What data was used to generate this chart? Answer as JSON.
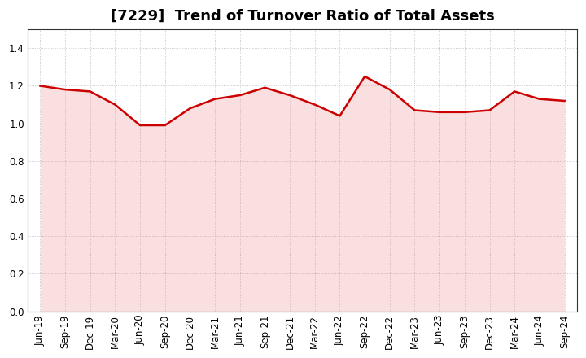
{
  "title": "[7229]  Trend of Turnover Ratio of Total Assets",
  "labels": [
    "Jun-19",
    "Sep-19",
    "Dec-19",
    "Mar-20",
    "Jun-20",
    "Sep-20",
    "Dec-20",
    "Mar-21",
    "Jun-21",
    "Sep-21",
    "Dec-21",
    "Mar-22",
    "Jun-22",
    "Sep-22",
    "Dec-22",
    "Mar-23",
    "Jun-23",
    "Sep-23",
    "Dec-23",
    "Mar-24",
    "Jun-24",
    "Sep-24"
  ],
  "values": [
    1.2,
    1.18,
    1.17,
    1.1,
    0.99,
    0.99,
    1.08,
    1.13,
    1.15,
    1.19,
    1.15,
    1.1,
    1.04,
    1.25,
    1.18,
    1.07,
    1.06,
    1.06,
    1.07,
    1.17,
    1.13,
    1.12
  ],
  "line_color": "#cc0000",
  "line_width": 1.8,
  "ylim": [
    0.0,
    1.5
  ],
  "yticks": [
    0.0,
    0.2,
    0.4,
    0.6,
    0.8,
    1.0,
    1.2,
    1.4
  ],
  "bg_color": "#ffffff",
  "plot_bg_color": "#ffffff",
  "grid_color": "#bbbbbb",
  "title_fontsize": 13,
  "tick_fontsize": 8.5,
  "fill_color": "#e88080",
  "fill_alpha": 0.25,
  "figsize": [
    7.2,
    4.4
  ],
  "dpi": 100
}
